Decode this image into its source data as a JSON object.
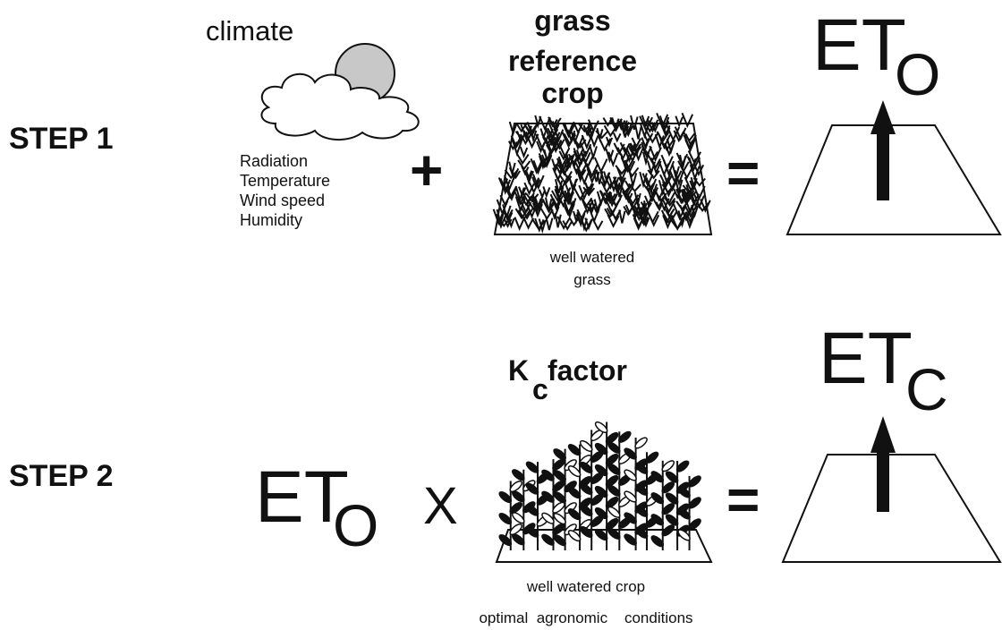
{
  "step1": {
    "label": "STEP 1",
    "climate": {
      "title": "climate",
      "factors": [
        "Radiation",
        "Temperature",
        "Wind speed",
        "Humidity"
      ]
    },
    "plus": "+",
    "reference_crop": {
      "title": [
        "grass",
        "reference",
        "crop"
      ],
      "caption": [
        "well watered",
        "grass"
      ]
    },
    "equals": "=",
    "result": {
      "symbol": "ET",
      "subscript": "O"
    }
  },
  "step2": {
    "label": "STEP 2",
    "input": {
      "symbol": "ET",
      "subscript": "O"
    },
    "times": "X",
    "kc": {
      "symbol": "K",
      "subscript": "c",
      "word": "factor"
    },
    "caption": [
      "well watered  crop",
      "optimal  agronomic    conditions"
    ],
    "equals": "=",
    "result": {
      "symbol": "ET",
      "subscript": "C"
    }
  }
}
